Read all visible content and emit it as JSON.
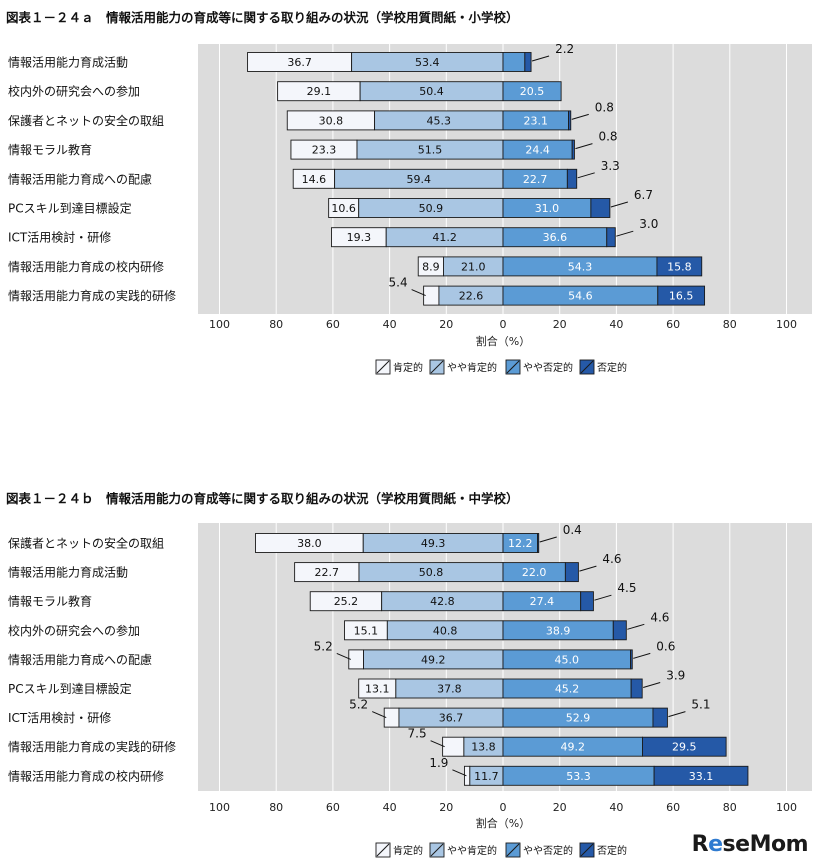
{
  "chart_data": [
    {
      "type": "bar",
      "stacking": "diverging",
      "title": "図表１－２４ａ　情報活用能力の育成等に関する取り組みの状況（学校用質問紙・小学校）",
      "xlabel": "割合（%）",
      "x_ticks": [
        "100",
        "80",
        "60",
        "40",
        "20",
        "0",
        "20",
        "40",
        "60",
        "80",
        "100"
      ],
      "legend": [
        "肯定的",
        "やや肯定的",
        "やや否定的",
        "否定的"
      ],
      "legend_position": "bottom",
      "grid": true,
      "categories": [
        "情報活用能力育成活動",
        "校内外の研究会への参加",
        "保護者とネットの安全の取組",
        "情報モラル教育",
        "情報活用能力育成への配慮",
        "PCスキル到達目標設定",
        "ICT活用検討・研修",
        "情報活用能力育成の校内研修",
        "情報活用能力育成の実践的研修"
      ],
      "series": [
        {
          "name": "肯定的",
          "values": [
            36.7,
            29.1,
            30.8,
            23.3,
            14.6,
            10.6,
            19.3,
            8.9,
            5.4
          ]
        },
        {
          "name": "やや肯定的",
          "values": [
            53.4,
            50.4,
            45.3,
            51.5,
            59.4,
            50.9,
            41.2,
            21.0,
            22.6
          ]
        },
        {
          "name": "やや否定的",
          "values": [
            7.7,
            20.5,
            23.1,
            24.4,
            22.7,
            31.0,
            36.6,
            54.3,
            54.6
          ]
        },
        {
          "name": "否定的",
          "values": [
            2.2,
            0.0,
            0.8,
            0.8,
            3.3,
            6.7,
            3.0,
            15.8,
            16.5
          ]
        }
      ],
      "labels": [
        [
          "36.7",
          "53.4",
          "7.7",
          "2.2"
        ],
        [
          "29.1",
          "50.4",
          "20.5",
          ""
        ],
        [
          "30.8",
          "45.3",
          "23.1",
          "0.8"
        ],
        [
          "23.3",
          "51.5",
          "24.4",
          "0.8"
        ],
        [
          "14.6",
          "59.4",
          "22.7",
          "3.3"
        ],
        [
          "10.6",
          "50.9",
          "31.0",
          "6.7"
        ],
        [
          "19.3",
          "41.2",
          "36.6",
          "3.0"
        ],
        [
          "8.9",
          "21.0",
          "54.3",
          "15.8"
        ],
        [
          "5.4",
          "22.6",
          "54.6",
          "16.5"
        ]
      ]
    },
    {
      "type": "bar",
      "stacking": "diverging",
      "title": "図表１－２４ｂ　情報活用能力の育成等に関する取り組みの状況（学校用質問紙・中学校）",
      "xlabel": "割合（%）",
      "x_ticks": [
        "100",
        "80",
        "60",
        "40",
        "20",
        "0",
        "20",
        "40",
        "60",
        "80",
        "100"
      ],
      "legend": [
        "肯定的",
        "やや肯定的",
        "やや否定的",
        "否定的"
      ],
      "legend_position": "bottom",
      "grid": true,
      "categories": [
        "保護者とネットの安全の取組",
        "情報活用能力育成活動",
        "情報モラル教育",
        "校内外の研究会への参加",
        "情報活用能力育成への配慮",
        "PCスキル到達目標設定",
        "ICT活用検討・研修",
        "情報活用能力育成の実践的研修",
        "情報活用能力育成の校内研修"
      ],
      "series": [
        {
          "name": "肯定的",
          "values": [
            38.0,
            22.7,
            25.2,
            15.1,
            5.2,
            13.1,
            5.2,
            7.5,
            1.9
          ]
        },
        {
          "name": "やや肯定的",
          "values": [
            49.3,
            50.8,
            42.8,
            40.8,
            49.2,
            37.8,
            36.7,
            13.8,
            11.7
          ]
        },
        {
          "name": "やや否定的",
          "values": [
            12.2,
            22.0,
            27.4,
            38.9,
            45.0,
            45.2,
            52.9,
            49.2,
            53.3
          ]
        },
        {
          "name": "否定的",
          "values": [
            0.4,
            4.6,
            4.5,
            4.6,
            0.6,
            3.9,
            5.1,
            29.5,
            33.1
          ]
        }
      ],
      "labels": [
        [
          "38.0",
          "49.3",
          "12.2",
          "0.4"
        ],
        [
          "22.7",
          "50.8",
          "22.0",
          "4.6"
        ],
        [
          "25.2",
          "42.8",
          "27.4",
          "4.5"
        ],
        [
          "15.1",
          "40.8",
          "38.9",
          "4.6"
        ],
        [
          "5.2",
          "49.2",
          "45.0",
          "0.6"
        ],
        [
          "13.1",
          "37.8",
          "45.2",
          "3.9"
        ],
        [
          "5.2",
          "36.7",
          "52.9",
          "5.1"
        ],
        [
          "7.5",
          "13.8",
          "49.2",
          "29.5"
        ],
        [
          "1.9",
          "11.7",
          "53.3",
          "33.1"
        ]
      ]
    }
  ],
  "watermark": {
    "prefix": "R",
    "e": "e",
    "suffix": "seMom"
  }
}
